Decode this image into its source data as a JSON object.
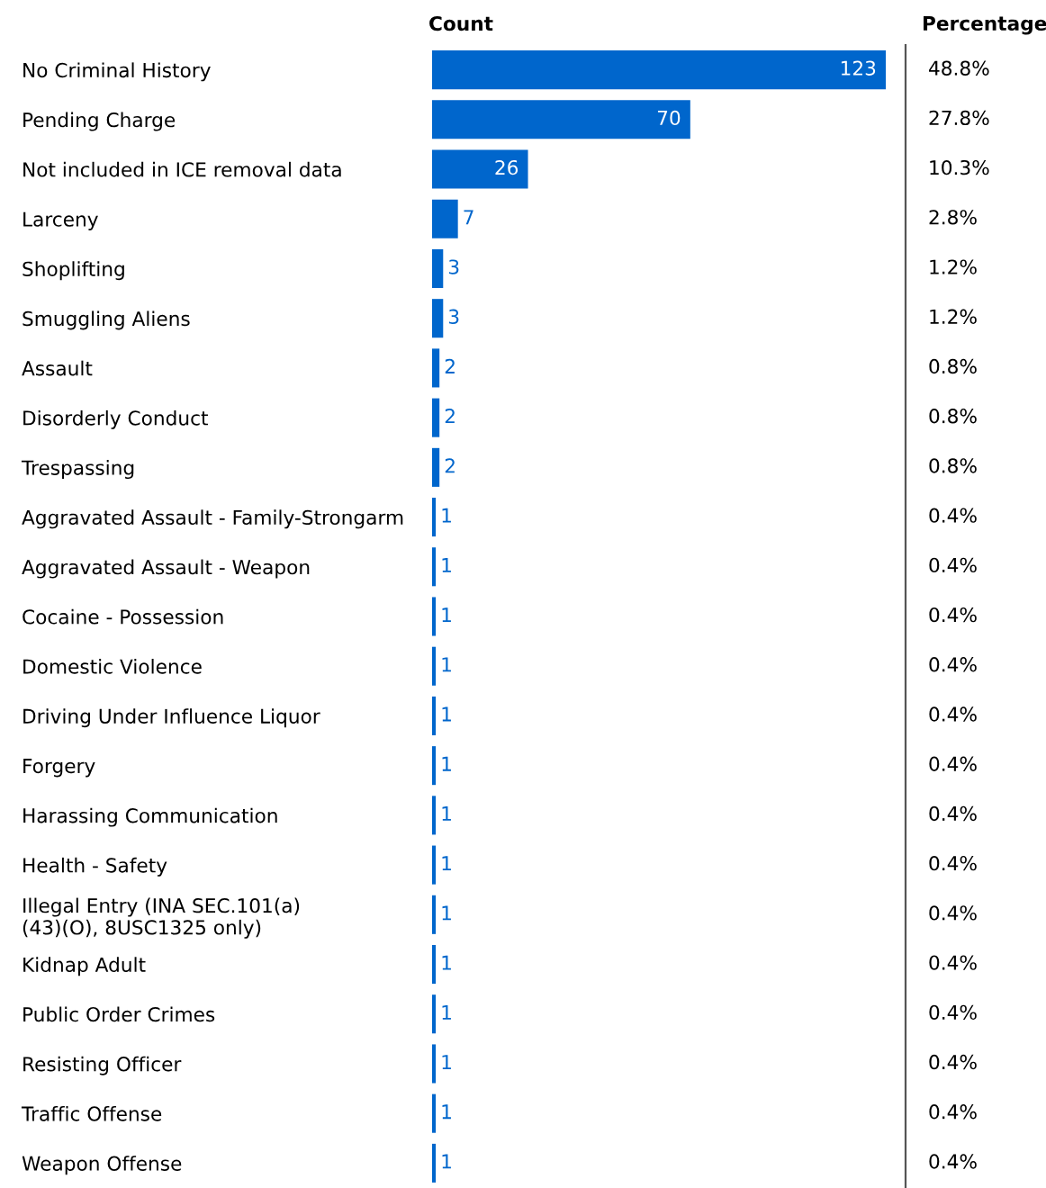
{
  "chart_data": [
    {
      "type": "bar",
      "orientation": "horizontal",
      "title": "Count",
      "categories": [
        "No Criminal History",
        "Pending Charge",
        "Not included in ICE removal data",
        "Larceny",
        "Shoplifting",
        "Smuggling Aliens",
        "Assault",
        "Disorderly Conduct",
        "Trespassing",
        "Aggravated Assault - Family-Strongarm",
        "Aggravated Assault - Weapon",
        "Cocaine - Possession",
        "Domestic Violence",
        "Driving Under Influence Liquor",
        "Forgery",
        "Harassing Communication",
        "Health - Safety",
        "Illegal Entry (INA SEC.101(a)\n(43)(O), 8USC1325 only)",
        "Kidnap Adult",
        "Public Order Crimes",
        "Resisting Officer",
        "Traffic Offense",
        "Weapon Offense"
      ],
      "values": [
        123,
        70,
        26,
        7,
        3,
        3,
        2,
        2,
        2,
        1,
        1,
        1,
        1,
        1,
        1,
        1,
        1,
        1,
        1,
        1,
        1,
        1,
        1
      ],
      "color": "#0066cc",
      "data_labels": true,
      "grid": false,
      "legend": false
    },
    {
      "type": "other",
      "title": "Percentage",
      "annotations": [
        "48.8%",
        "27.8%",
        "10.3%",
        "2.8%",
        "1.2%",
        "1.2%",
        "0.8%",
        "0.8%",
        "0.8%",
        "0.4%",
        "0.4%",
        "0.4%",
        "0.4%",
        "0.4%",
        "0.4%",
        "0.4%",
        "0.4%",
        "0.4%",
        "0.4%",
        "0.4%",
        "0.4%",
        "0.4%",
        "0.4%"
      ]
    }
  ]
}
